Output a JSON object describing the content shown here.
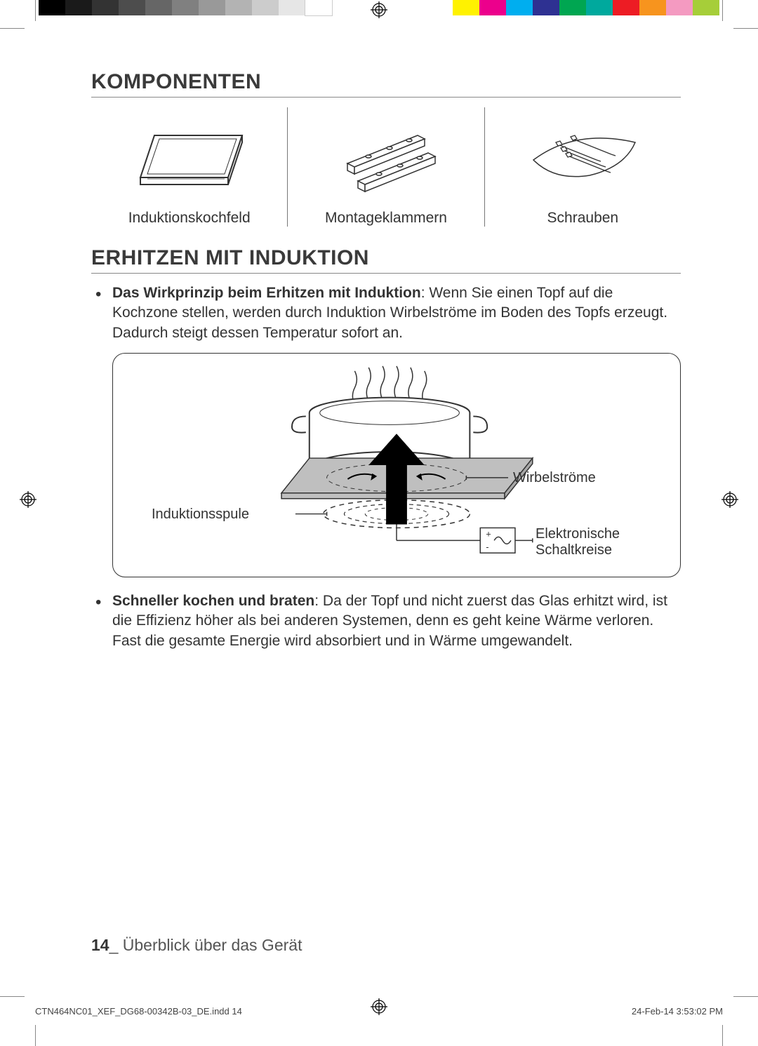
{
  "printer_marks": {
    "grayscale_swatches": [
      "#000000",
      "#1a1a1a",
      "#333333",
      "#4d4d4d",
      "#666666",
      "#808080",
      "#999999",
      "#b3b3b3",
      "#cccccc",
      "#e6e6e6",
      "#ffffff"
    ],
    "color_swatches": [
      "#fff200",
      "#ec008c",
      "#00aeef",
      "#2e3192",
      "#00a651",
      "#00a99d",
      "#ed1c24",
      "#f7941e",
      "#f49ac1",
      "#a6ce39"
    ],
    "reg_color": "#000000",
    "crop_color": "#888888"
  },
  "section1": {
    "title": "KOMPONENTEN",
    "items": [
      {
        "label": "Induktionskochfeld"
      },
      {
        "label": "Montageklammern"
      },
      {
        "label": "Schrauben"
      }
    ]
  },
  "section2": {
    "title": "ERHITZEN MIT INDUKTION",
    "bullet1_lead": "Das Wirkprinzip beim Erhitzen mit Induktion",
    "bullet1_rest": ": Wenn Sie einen Topf auf die Kochzone stellen, werden durch Induktion Wirbelströme im Boden des Topfs erzeugt. Dadurch steigt dessen Temperatur sofort an.",
    "diagram": {
      "label_wirbel": "Wirbelströme",
      "label_spule": "Induktionsspule",
      "label_schalt": "Elektronische Schaltkreise",
      "stroke": "#333333",
      "pot_fill": "#ffffff",
      "plate_fill": "#bfbfbf",
      "arrow_fill": "#000000"
    },
    "bullet2_lead": "Schneller kochen und braten",
    "bullet2_rest": ": Da der Topf und nicht zuerst das Glas erhitzt wird, ist die Effizienz höher als bei anderen Systemen, denn es geht keine Wärme verloren. Fast die gesamte Energie wird absorbiert und in Wärme umgewandelt."
  },
  "footer": {
    "page_number": "14",
    "section_name": "Überblick über das Gerät"
  },
  "indd": {
    "file": "CTN464NC01_XEF_DG68-00342B-03_DE.indd   14",
    "timestamp": "24-Feb-14   3:53:02 PM"
  },
  "comp_svg": {
    "stroke": "#333333",
    "fill": "#ffffff"
  }
}
